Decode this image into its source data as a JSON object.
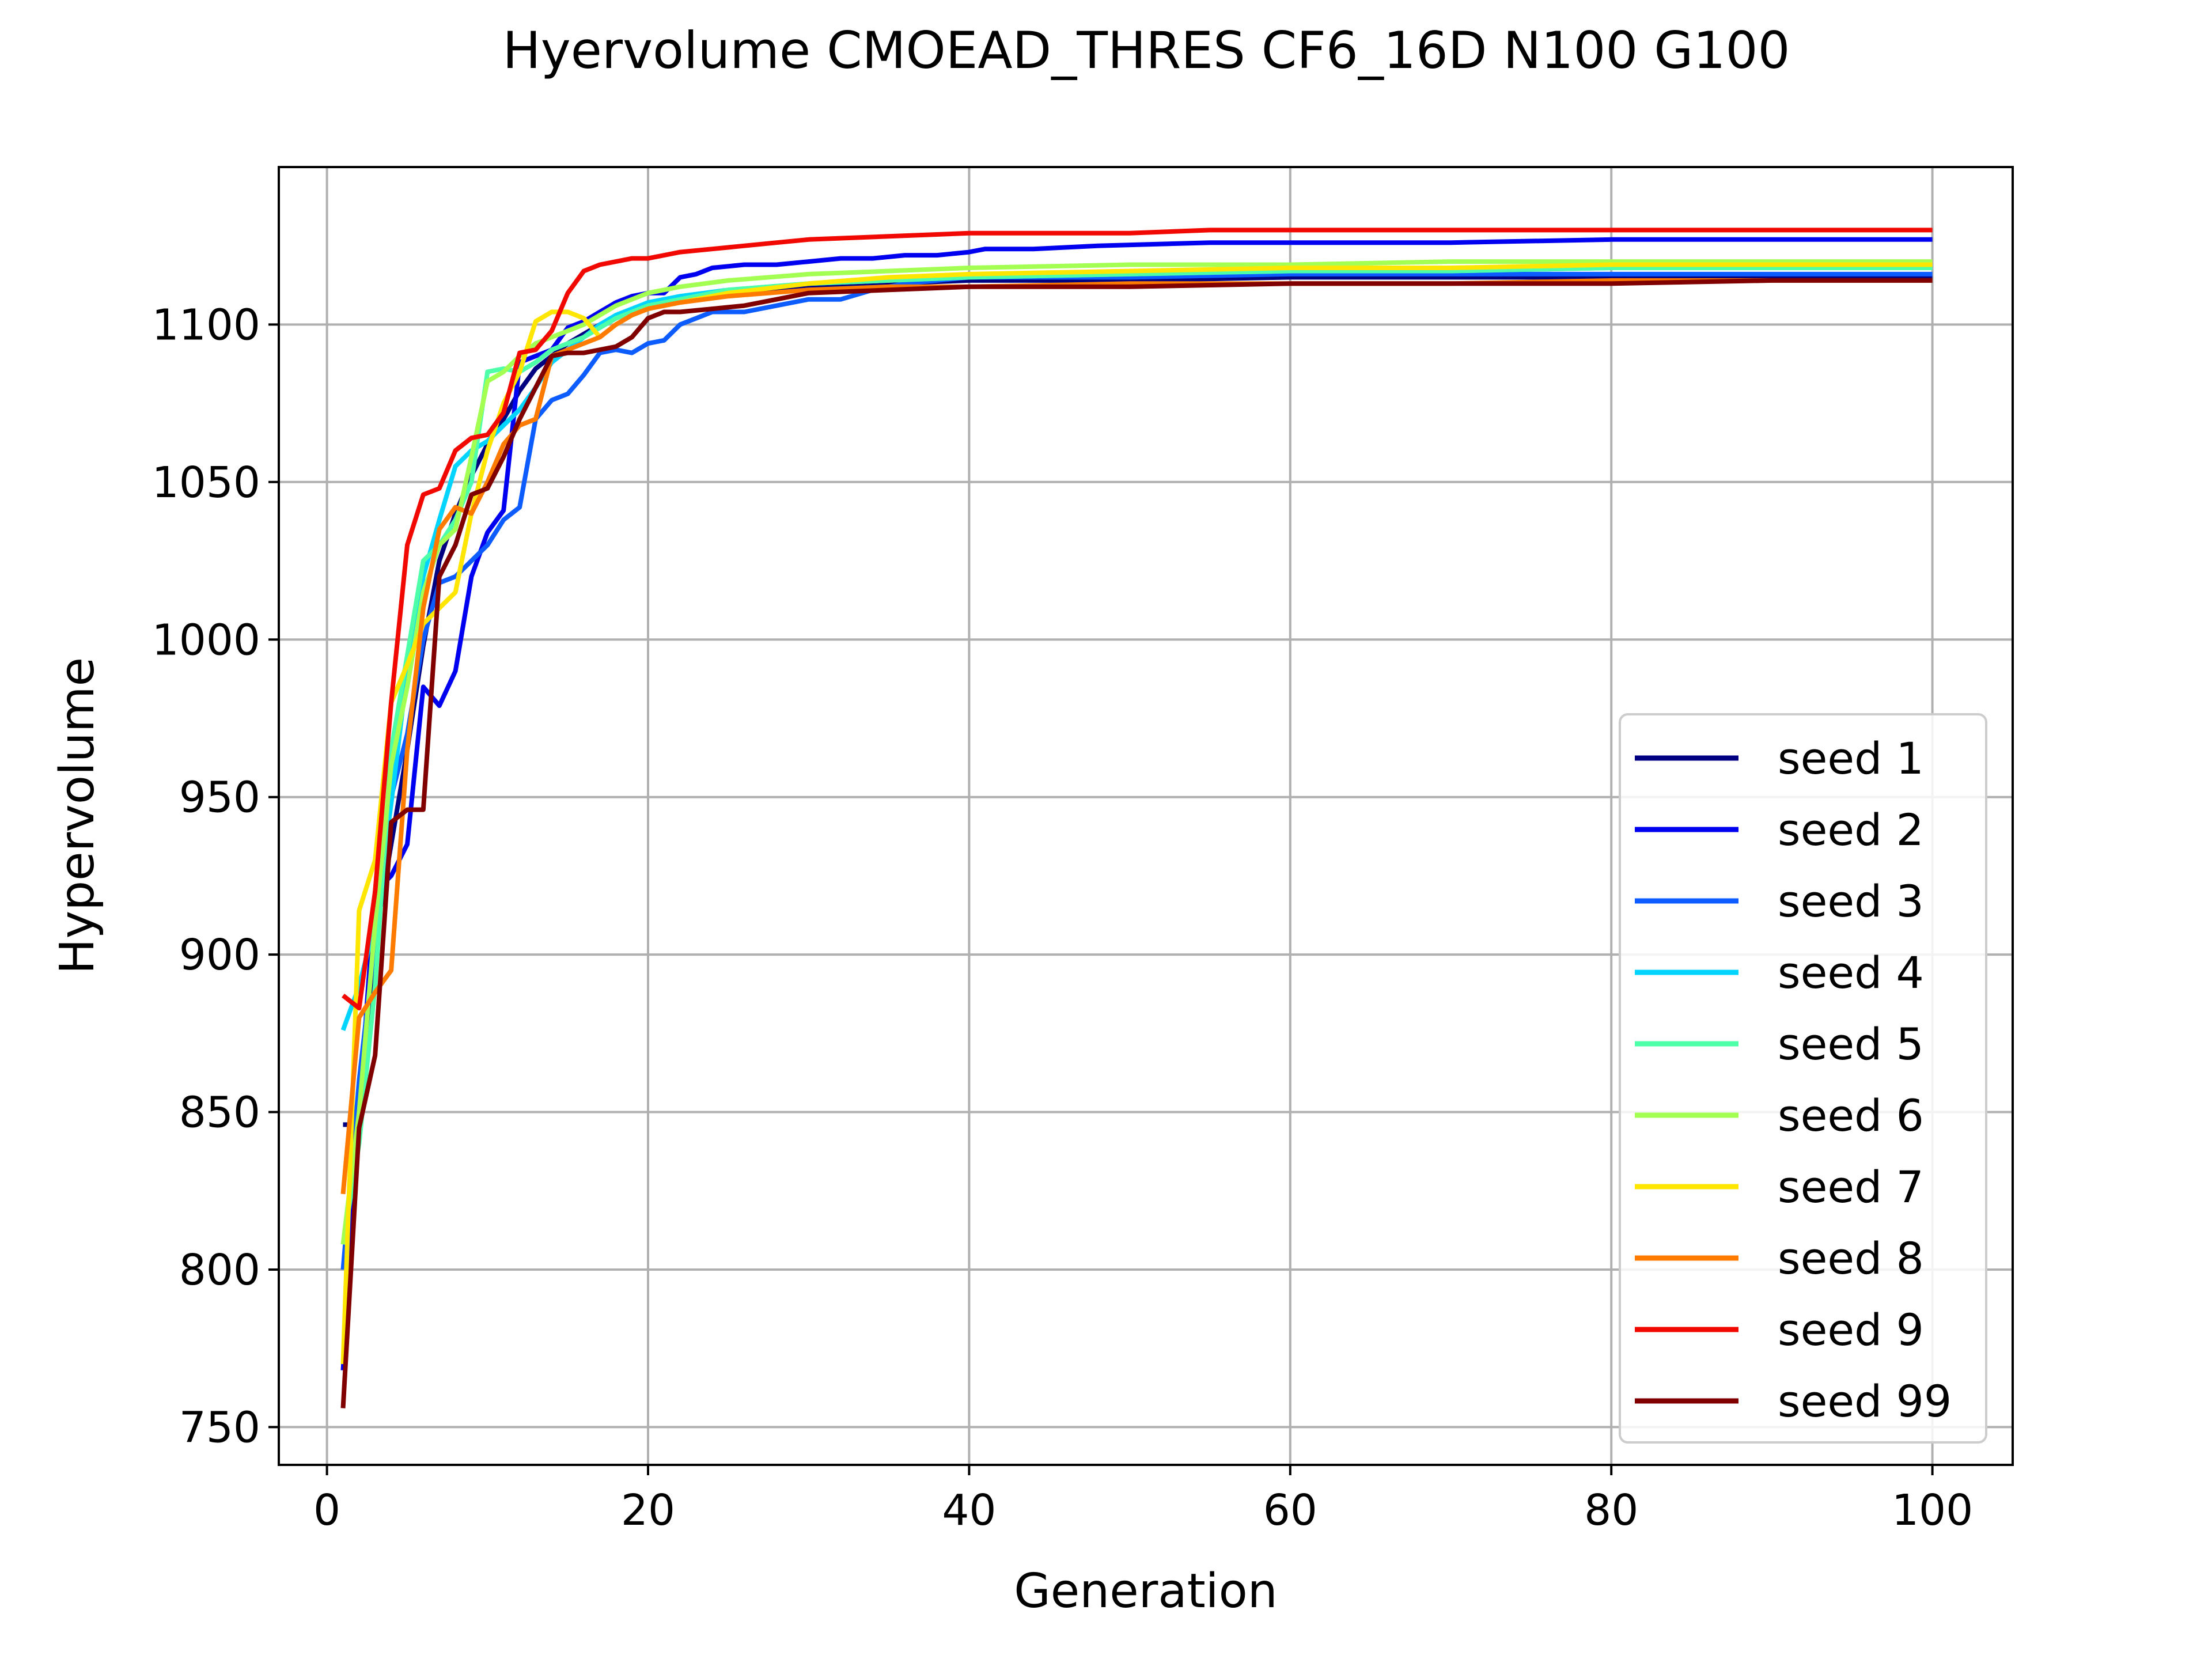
{
  "chart_data": {
    "type": "line",
    "title": "Hyervolume CMOEAD_THRES CF6_16D N100 G100",
    "xlabel": "Generation",
    "ylabel": "Hypervolume",
    "xlim": [
      -3,
      105
    ],
    "ylim": [
      738,
      1150
    ],
    "xticks": [
      0,
      20,
      40,
      60,
      80,
      100
    ],
    "yticks": [
      750,
      800,
      850,
      900,
      950,
      1000,
      1050,
      1100
    ],
    "grid": true,
    "legend_position": "lower-right",
    "series": [
      {
        "name": "seed 1",
        "color": "#000080",
        "x": [
          1,
          2,
          3,
          4,
          5,
          6,
          7,
          8,
          9,
          10,
          11,
          12,
          13,
          14,
          15,
          16,
          17,
          18,
          19,
          20,
          22,
          25,
          30,
          35,
          40,
          50,
          60,
          70,
          80,
          90,
          100
        ],
        "y": [
          846,
          846,
          905,
          935,
          965,
          998,
          1025,
          1040,
          1052,
          1062,
          1070,
          1079,
          1086,
          1090,
          1094,
          1097,
          1100,
          1102,
          1104,
          1106,
          1108,
          1110,
          1112,
          1113,
          1114,
          1114,
          1115,
          1115,
          1115,
          1115,
          1115
        ]
      },
      {
        "name": "seed 2",
        "color": "#0000f1",
        "x": [
          1,
          2,
          3,
          4,
          5,
          6,
          7,
          8,
          9,
          10,
          11,
          12,
          13,
          14,
          15,
          16,
          17,
          18,
          19,
          20,
          21,
          22,
          23,
          24,
          26,
          28,
          30,
          32,
          34,
          36,
          38,
          40,
          41,
          44,
          48,
          55,
          60,
          70,
          80,
          90,
          100
        ],
        "y": [
          768,
          850,
          920,
          925,
          935,
          985,
          979,
          990,
          1020,
          1034,
          1041,
          1088,
          1090,
          1092,
          1099,
          1101,
          1104,
          1107,
          1109,
          1110,
          1110,
          1115,
          1116,
          1118,
          1119,
          1119,
          1120,
          1121,
          1121,
          1122,
          1122,
          1123,
          1124,
          1124,
          1125,
          1126,
          1126,
          1126,
          1127,
          1127,
          1127
        ]
      },
      {
        "name": "seed 3",
        "color": "#0c5cff",
        "x": [
          1,
          2,
          3,
          4,
          5,
          6,
          7,
          8,
          9,
          10,
          11,
          12,
          13,
          14,
          15,
          16,
          17,
          18,
          19,
          20,
          21,
          22,
          23,
          24,
          26,
          28,
          30,
          32,
          34,
          36,
          40,
          50,
          60,
          70,
          80,
          90,
          100
        ],
        "y": [
          800,
          860,
          905,
          950,
          970,
          1000,
          1018,
          1020,
          1025,
          1030,
          1038,
          1042,
          1070,
          1076,
          1078,
          1084,
          1091,
          1092,
          1091,
          1094,
          1095,
          1100,
          1102,
          1104,
          1104,
          1106,
          1108,
          1108,
          1111,
          1113,
          1115,
          1115,
          1116,
          1116,
          1116,
          1116,
          1116
        ]
      },
      {
        "name": "seed 4",
        "color": "#00d4ff",
        "x": [
          1,
          2,
          3,
          4,
          5,
          6,
          7,
          8,
          9,
          10,
          11,
          12,
          13,
          14,
          15,
          16,
          17,
          18,
          19,
          20,
          22,
          25,
          30,
          35,
          40,
          50,
          60,
          70,
          80,
          90,
          100
        ],
        "y": [
          876,
          890,
          910,
          948,
          990,
          1020,
          1038,
          1055,
          1060,
          1063,
          1068,
          1073,
          1080,
          1088,
          1092,
          1096,
          1100,
          1103,
          1105,
          1107,
          1109,
          1111,
          1113,
          1114,
          1115,
          1116,
          1117,
          1117,
          1118,
          1118,
          1118
        ]
      },
      {
        "name": "seed 5",
        "color": "#4effa9",
        "x": [
          1,
          2,
          3,
          4,
          5,
          6,
          7,
          8,
          9,
          10,
          11,
          12,
          13,
          14,
          15,
          16,
          17,
          18,
          19,
          20,
          22,
          25,
          30,
          35,
          40,
          50,
          60,
          70,
          80,
          90,
          100
        ],
        "y": [
          808,
          840,
          890,
          965,
          995,
          1025,
          1030,
          1038,
          1050,
          1085,
          1086,
          1085,
          1088,
          1092,
          1094,
          1096,
          1099,
          1102,
          1104,
          1106,
          1108,
          1111,
          1113,
          1114,
          1115,
          1116,
          1117,
          1117,
          1118,
          1118,
          1118
        ]
      },
      {
        "name": "seed 6",
        "color": "#a4ff53",
        "x": [
          1,
          2,
          3,
          4,
          5,
          6,
          7,
          8,
          9,
          10,
          11,
          12,
          13,
          14,
          15,
          16,
          17,
          18,
          19,
          20,
          22,
          25,
          30,
          35,
          40,
          50,
          60,
          70,
          80,
          90,
          100
        ],
        "y": [
          808,
          850,
          910,
          960,
          985,
          1015,
          1030,
          1035,
          1058,
          1082,
          1085,
          1090,
          1094,
          1096,
          1098,
          1100,
          1103,
          1106,
          1108,
          1110,
          1112,
          1114,
          1116,
          1117,
          1118,
          1119,
          1119,
          1120,
          1120,
          1120,
          1120
        ]
      },
      {
        "name": "seed 7",
        "color": "#ffe600",
        "x": [
          1,
          2,
          3,
          4,
          5,
          6,
          7,
          8,
          9,
          10,
          11,
          12,
          13,
          14,
          15,
          16,
          17,
          18,
          19,
          20,
          22,
          25,
          30,
          35,
          40,
          50,
          60,
          70,
          80,
          90,
          100
        ],
        "y": [
          770,
          914,
          930,
          980,
          992,
          1005,
          1010,
          1015,
          1040,
          1060,
          1075,
          1085,
          1101,
          1104,
          1104,
          1102,
          1096,
          1100,
          1103,
          1105,
          1107,
          1110,
          1113,
          1115,
          1116,
          1117,
          1118,
          1118,
          1119,
          1119,
          1119
        ]
      },
      {
        "name": "seed 8",
        "color": "#ff7b00",
        "x": [
          1,
          2,
          3,
          4,
          5,
          6,
          7,
          8,
          9,
          10,
          11,
          12,
          13,
          14,
          15,
          16,
          17,
          18,
          19,
          20,
          22,
          25,
          30,
          35,
          40,
          50,
          60,
          70,
          80,
          90,
          100
        ],
        "y": [
          824,
          880,
          888,
          895,
          965,
          1010,
          1035,
          1042,
          1040,
          1050,
          1062,
          1068,
          1070,
          1090,
          1092,
          1094,
          1096,
          1100,
          1103,
          1105,
          1107,
          1109,
          1111,
          1112,
          1112,
          1113,
          1113,
          1113,
          1114,
          1114,
          1114
        ]
      },
      {
        "name": "seed 9",
        "color": "#f10800",
        "x": [
          1,
          2,
          3,
          4,
          5,
          6,
          7,
          8,
          9,
          10,
          11,
          12,
          13,
          14,
          15,
          16,
          17,
          18,
          19,
          20,
          22,
          24,
          26,
          28,
          30,
          35,
          40,
          45,
          50,
          55,
          60,
          70,
          80,
          90,
          100
        ],
        "y": [
          887,
          883,
          920,
          980,
          1030,
          1046,
          1048,
          1060,
          1064,
          1065,
          1072,
          1091,
          1092,
          1098,
          1110,
          1117,
          1119,
          1120,
          1121,
          1121,
          1123,
          1124,
          1125,
          1126,
          1127,
          1128,
          1129,
          1129,
          1129,
          1130,
          1130,
          1130,
          1130,
          1130,
          1130
        ]
      },
      {
        "name": "seed 99",
        "color": "#800000",
        "x": [
          1,
          2,
          3,
          4,
          5,
          6,
          7,
          8,
          9,
          10,
          11,
          12,
          13,
          14,
          15,
          16,
          17,
          18,
          19,
          20,
          21,
          22,
          24,
          26,
          28,
          30,
          35,
          40,
          50,
          60,
          70,
          80,
          90,
          100
        ],
        "y": [
          756,
          845,
          868,
          942,
          946,
          946,
          1020,
          1030,
          1046,
          1048,
          1058,
          1070,
          1080,
          1090,
          1091,
          1091,
          1092,
          1093,
          1096,
          1102,
          1104,
          1104,
          1105,
          1106,
          1108,
          1110,
          1111,
          1112,
          1112,
          1113,
          1113,
          1113,
          1114,
          1114
        ]
      }
    ]
  }
}
